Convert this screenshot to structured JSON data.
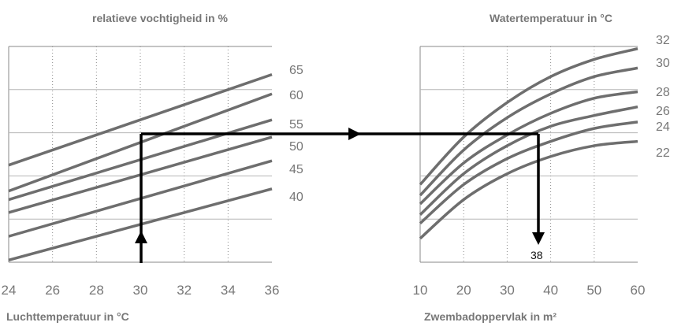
{
  "chart_data": [
    {
      "type": "line",
      "title": "relatieve vochtigheid in %",
      "xlabel": "Luchttemperatuur in °C",
      "ylabel": "",
      "xlim": [
        24,
        36
      ],
      "x_ticks": [
        "24",
        "26",
        "28",
        "30",
        "32",
        "34",
        "36"
      ],
      "grid": "on",
      "x_ticks_label_positions": "bottom",
      "series": [
        {
          "name": "65",
          "x": [
            24,
            36
          ],
          "y": [
            0.45,
            0.87
          ]
        },
        {
          "name": "60",
          "x": [
            24,
            36
          ],
          "y": [
            0.33,
            0.78
          ]
        },
        {
          "name": "55",
          "x": [
            24,
            36
          ],
          "y": [
            0.29,
            0.66
          ]
        },
        {
          "name": "50",
          "x": [
            24,
            36
          ],
          "y": [
            0.23,
            0.58
          ]
        },
        {
          "name": "45",
          "x": [
            24,
            36
          ],
          "y": [
            0.12,
            0.47
          ]
        },
        {
          "name": "40",
          "x": [
            24,
            36
          ],
          "y": [
            0.01,
            0.34
          ]
        }
      ]
    },
    {
      "type": "line",
      "title": "Watertemperatuur in °C",
      "xlabel": "Zwembadoppervlak in m²",
      "ylabel": "",
      "xlim": [
        10,
        60
      ],
      "x_ticks": [
        "10",
        "20",
        "30",
        "40",
        "50",
        "60"
      ],
      "grid": "on",
      "series": [
        {
          "name": "32",
          "x": [
            10,
            20,
            30,
            40,
            50,
            60
          ],
          "y": [
            0.36,
            0.58,
            0.74,
            0.86,
            0.94,
            0.99
          ]
        },
        {
          "name": "30",
          "x": [
            10,
            20,
            30,
            40,
            50,
            60
          ],
          "y": [
            0.31,
            0.52,
            0.67,
            0.78,
            0.86,
            0.9
          ]
        },
        {
          "name": "28",
          "x": [
            10,
            20,
            30,
            40,
            50,
            60
          ],
          "y": [
            0.27,
            0.46,
            0.59,
            0.69,
            0.76,
            0.79
          ]
        },
        {
          "name": "26",
          "x": [
            10,
            20,
            30,
            40,
            50,
            60
          ],
          "y": [
            0.22,
            0.41,
            0.54,
            0.63,
            0.68,
            0.72
          ]
        },
        {
          "name": "24",
          "x": [
            10,
            20,
            30,
            40,
            50,
            60
          ],
          "y": [
            0.18,
            0.36,
            0.48,
            0.56,
            0.62,
            0.65
          ]
        },
        {
          "name": "22",
          "x": [
            10,
            20,
            30,
            40,
            50,
            60
          ],
          "y": [
            0.11,
            0.29,
            0.41,
            0.49,
            0.54,
            0.56
          ]
        }
      ]
    }
  ],
  "example": {
    "air_temperature": 30,
    "water_area_result": "38"
  }
}
